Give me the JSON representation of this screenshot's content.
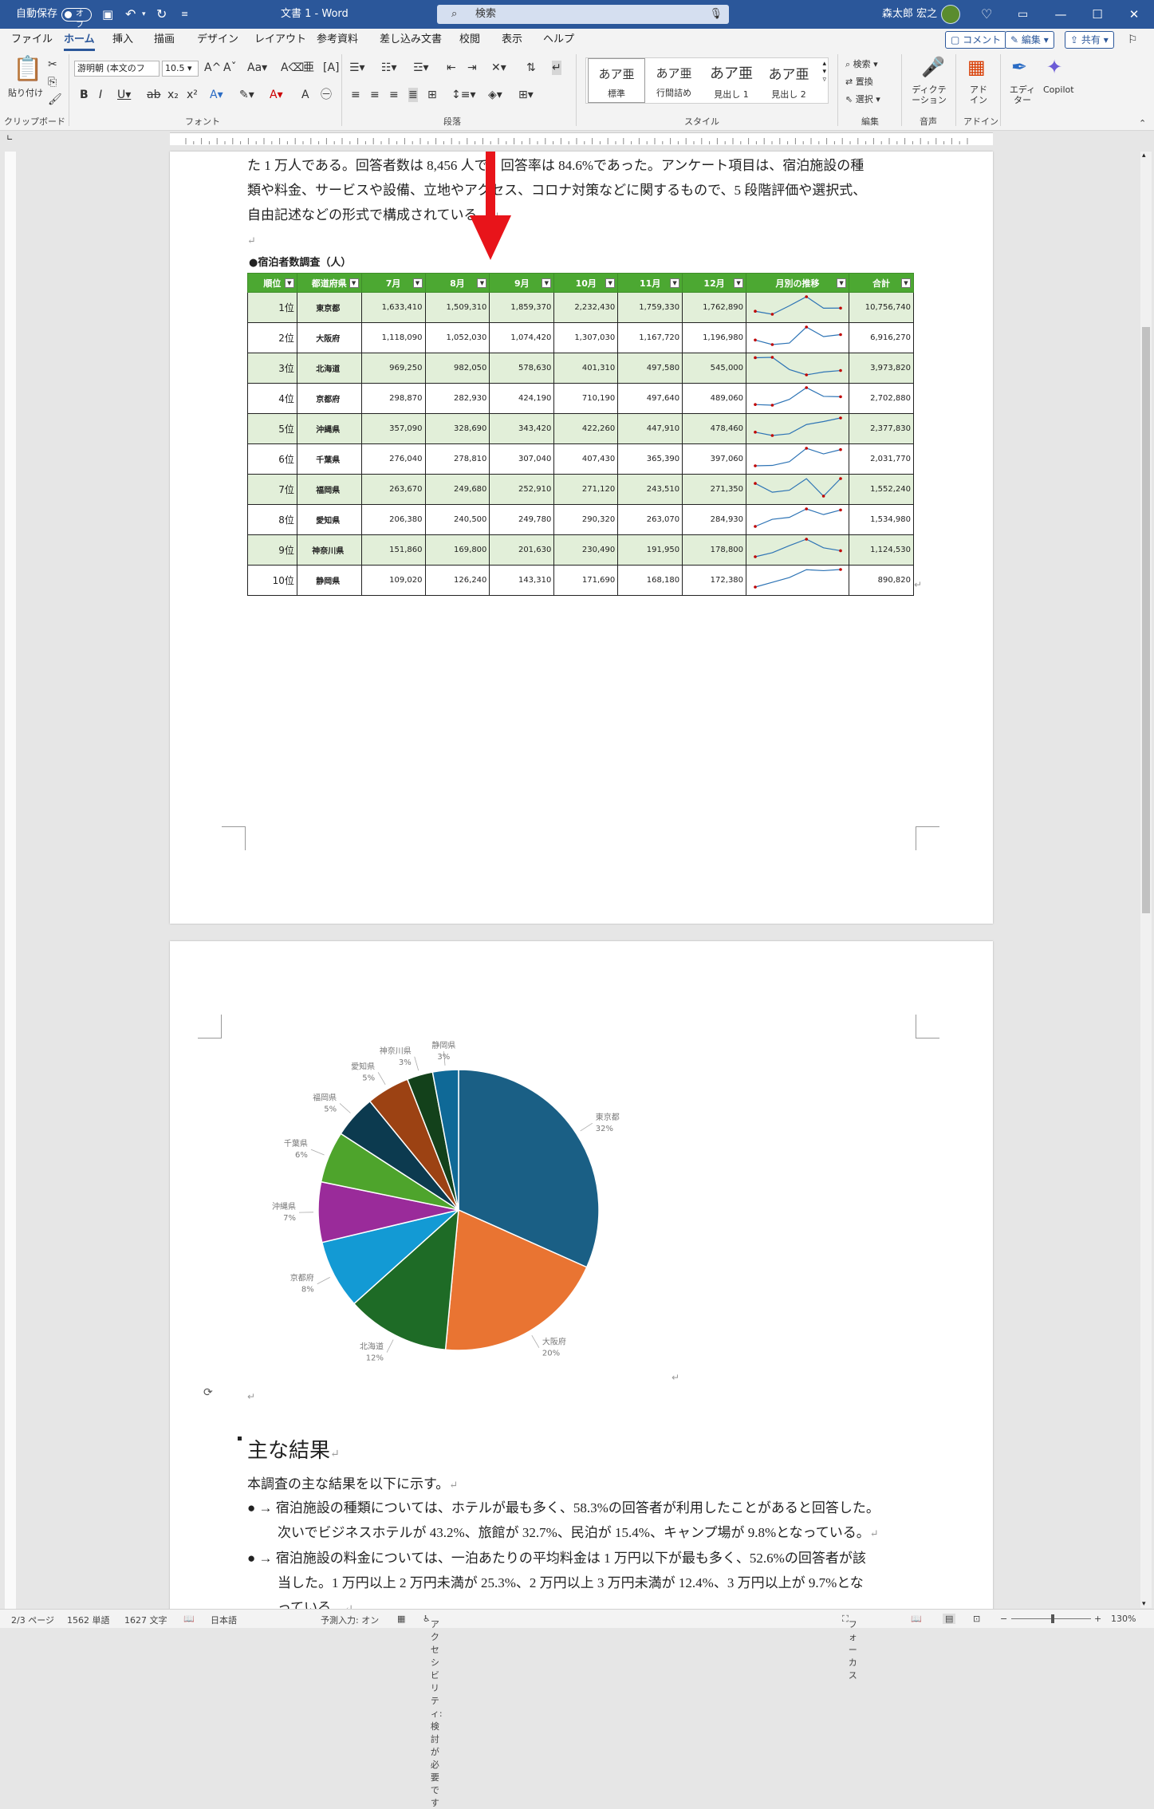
{
  "titlebar": {
    "autosave_label": "自動保存",
    "autosave_state": "オフ",
    "doc_title": "文書 1 - Word",
    "search_placeholder": "検索",
    "user_name": "森太郎 宏之"
  },
  "menu": {
    "items": [
      "ファイル",
      "ホーム",
      "挿入",
      "描画",
      "デザイン",
      "レイアウト",
      "参考資料",
      "差し込み文書",
      "校閲",
      "表示",
      "ヘルプ"
    ],
    "active": "ホーム",
    "comment": "コメント",
    "edit": "編集",
    "share": "共有"
  },
  "ribbon": {
    "paste": "貼り付け",
    "font_name": "游明朝 (本文のフ",
    "font_size": "10.5",
    "styles": [
      {
        "preview": "あア亜",
        "label": "標準"
      },
      {
        "preview": "あア亜",
        "label": "行間詰め"
      },
      {
        "preview": "あア亜",
        "label": "見出し 1"
      },
      {
        "preview": "あア亜",
        "label": "見出し 2"
      }
    ],
    "find": "検索",
    "replace": "置換",
    "select": "選択",
    "dictate": "ディクテーション",
    "addin": "アドイン",
    "editor": "エディター",
    "copilot": "Copilot",
    "groups": [
      "クリップボード",
      "フォント",
      "段落",
      "スタイル",
      "編集",
      "音声",
      "アドイン"
    ]
  },
  "page1": {
    "lines": [
      "た 1 万人である。回答者数は 8,456 人で、回答率は 84.6%であった。アンケート項目は、宿泊施設の種",
      "類や料金、サービスや設備、立地やアクセス、コロナ対策などに関するもので、5 段階評価や選択式、",
      "自由記述などの形式で構成されている。"
    ],
    "table_title": "●宿泊者数調査（人）",
    "headers": [
      "順位",
      "都道府県",
      "7月",
      "8月",
      "9月",
      "10月",
      "11月",
      "12月",
      "月別の推移",
      "合計"
    ],
    "rows": [
      [
        "1位",
        "東京都",
        "1,633,410",
        "1,509,310",
        "1,859,370",
        "2,232,430",
        "1,759,330",
        "1,762,890",
        "10,756,740"
      ],
      [
        "2位",
        "大阪府",
        "1,118,090",
        "1,052,030",
        "1,074,420",
        "1,307,030",
        "1,167,720",
        "1,196,980",
        "6,916,270"
      ],
      [
        "3位",
        "北海道",
        "969,250",
        "982,050",
        "578,630",
        "401,310",
        "497,580",
        "545,000",
        "3,973,820"
      ],
      [
        "4位",
        "京都府",
        "298,870",
        "282,930",
        "424,190",
        "710,190",
        "497,640",
        "489,060",
        "2,702,880"
      ],
      [
        "5位",
        "沖縄県",
        "357,090",
        "328,690",
        "343,420",
        "422,260",
        "447,910",
        "478,460",
        "2,377,830"
      ],
      [
        "6位",
        "千葉県",
        "276,040",
        "278,810",
        "307,040",
        "407,430",
        "365,390",
        "397,060",
        "2,031,770"
      ],
      [
        "7位",
        "福岡県",
        "263,670",
        "249,680",
        "252,910",
        "271,120",
        "243,510",
        "271,350",
        "1,552,240"
      ],
      [
        "8位",
        "愛知県",
        "206,380",
        "240,500",
        "249,780",
        "290,320",
        "263,070",
        "284,930",
        "1,534,980"
      ],
      [
        "9位",
        "神奈川県",
        "151,860",
        "169,800",
        "201,630",
        "230,490",
        "191,950",
        "178,800",
        "1,124,530"
      ],
      [
        "10位",
        "静岡県",
        "109,020",
        "126,240",
        "143,310",
        "171,690",
        "168,180",
        "172,380",
        "890,820"
      ]
    ]
  },
  "chart_data": {
    "type": "pie",
    "categories": [
      "東京都",
      "大阪府",
      "北海道",
      "京都府",
      "沖縄県",
      "千葉県",
      "福岡県",
      "愛知県",
      "神奈川県",
      "静岡県"
    ],
    "values": [
      32,
      20,
      12,
      8,
      7,
      6,
      5,
      5,
      3,
      3
    ],
    "labels": [
      "32%",
      "20%",
      "12%",
      "8%",
      "7%",
      "6%",
      "5%",
      "5%",
      "3%",
      "3%"
    ],
    "colors": [
      "#1a5f85",
      "#e97432",
      "#1e6b26",
      "#139ad4",
      "#9a2b9a",
      "#4ea42c",
      "#0c3a4f",
      "#9c4213",
      "#13411b",
      "#0f6997"
    ]
  },
  "page2": {
    "heading": "主な結果",
    "intro": "本調査の主な結果を以下に示す。",
    "bullets": [
      [
        "宿泊施設の種類については、ホテルが最も多く、58.3%の回答者が利用したことがあると回答した。",
        "次いでビジネスホテルが 43.2%、旅館が 32.7%、民泊が 15.4%、キャンプ場が 9.8%となっている。"
      ],
      [
        "宿泊施設の料金については、一泊あたりの平均料金は 1 万円以下が最も多く、52.6%の回答者が該",
        "当した。1 万円以上 2 万円未満が 25.3%、2 万円以上 3 万円未満が 12.4%、3 万円以上が 9.7%とな",
        "っている。"
      ]
    ]
  },
  "status": {
    "page": "2/3 ページ",
    "words": "1562 単語",
    "chars": "1627 文字",
    "lang": "日本語",
    "predict": "予測入力: オン",
    "access": "アクセシビリティ: 検討が必要です",
    "focus": "フォーカス",
    "zoom": "130%"
  }
}
